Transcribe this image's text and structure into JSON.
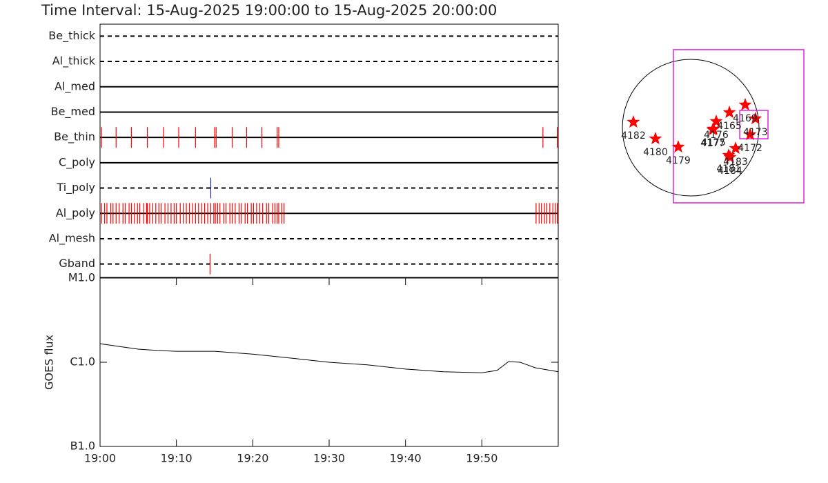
{
  "chart_data": [
    {
      "type": "timeline",
      "title": "Time Interval: 15-Aug-2025 19:00:00 to 15-Aug-2025 20:00:00",
      "xlim": [
        0,
        60
      ],
      "rows": [
        {
          "name": "Be_thick",
          "style": "dashed",
          "color": "#ff0000",
          "events": []
        },
        {
          "name": "Al_thick",
          "style": "dashed",
          "color": "#ff0000",
          "events": []
        },
        {
          "name": "Al_med",
          "style": "solid",
          "color": "#ff0000",
          "events": []
        },
        {
          "name": "Be_med",
          "style": "solid",
          "color": "#ff0000",
          "events": []
        },
        {
          "name": "Be_thin",
          "style": "solid",
          "color": "#ff0000",
          "events": [
            0.2,
            2.1,
            4.1,
            6.2,
            8.3,
            10.3,
            12.5,
            15.0,
            15.2,
            17.3,
            19.2,
            21.2,
            23.2,
            23.4,
            58.0,
            59.9
          ]
        },
        {
          "name": "C_poly",
          "style": "solid",
          "color": "#ff0000",
          "events": []
        },
        {
          "name": "Ti_poly",
          "style": "dashed",
          "color": "#2020a0",
          "events": [
            14.5
          ]
        },
        {
          "name": "Al_poly",
          "style": "solid",
          "color": "#ff0000",
          "events": [
            0.2,
            0.6,
            0.9,
            1.4,
            1.7,
            2.1,
            2.5,
            3.0,
            3.3,
            3.8,
            4.1,
            4.5,
            4.9,
            5.2,
            5.7,
            6.1,
            6.2,
            6.5,
            6.9,
            7.3,
            7.7,
            8.0,
            8.5,
            8.9,
            9.3,
            9.7,
            10.0,
            10.5,
            10.9,
            11.3,
            11.7,
            12.1,
            12.5,
            12.9,
            13.3,
            13.7,
            14.1,
            14.5,
            14.9,
            15.1,
            15.4,
            15.7,
            16.2,
            16.5,
            17.0,
            17.3,
            17.7,
            18.2,
            18.5,
            19.0,
            19.3,
            19.8,
            20.1,
            20.5,
            20.9,
            21.3,
            21.8,
            22.1,
            22.6,
            22.9,
            23.2,
            23.4,
            23.8,
            24.1,
            57.1,
            57.5,
            57.8,
            58.2,
            58.5,
            58.9,
            59.3,
            59.6,
            59.9
          ]
        },
        {
          "name": "Al_mesh",
          "style": "dashed",
          "color": "#ff0000",
          "events": []
        },
        {
          "name": "Gband",
          "style": "dashed",
          "color": "#ff0000",
          "events": [
            14.4
          ]
        }
      ]
    },
    {
      "type": "line",
      "ylabel": "GOES flux",
      "log": true,
      "color": "#000000",
      "x": [
        0,
        2.5,
        5,
        7.5,
        10,
        15,
        20,
        25,
        30,
        35,
        40,
        45,
        50,
        52,
        53.5,
        55,
        57,
        60
      ],
      "values": [
        1.66e-06,
        1.54e-06,
        1.43e-06,
        1.38e-06,
        1.35e-06,
        1.35e-06,
        1.25e-06,
        1.12e-06,
        1e-06,
        9.3e-07,
        8.3e-07,
        7.7e-07,
        7.5e-07,
        8e-07,
        1.02e-06,
        1e-06,
        8.6e-07,
        7.7e-07
      ],
      "xlim": [
        0,
        60
      ],
      "xticks": [
        {
          "value": 0,
          "label": "19:00"
        },
        {
          "value": 10,
          "label": "19:10"
        },
        {
          "value": 20,
          "label": "19:20"
        },
        {
          "value": 30,
          "label": "19:30"
        },
        {
          "value": 40,
          "label": "19:40"
        },
        {
          "value": 50,
          "label": "19:50"
        }
      ],
      "ylim": [
        1e-07,
        1e-05
      ],
      "yticks": [
        {
          "value": 1e-05,
          "label": "M1.0"
        },
        {
          "value": 1e-06,
          "label": "C1.0"
        },
        {
          "value": 1e-07,
          "label": "B1.0"
        }
      ]
    },
    {
      "type": "scatter",
      "solar_radius": 950,
      "color": "#ff0000",
      "labels": [
        "4182",
        "4180",
        "4179",
        "4176",
        "4175",
        "4177",
        "4165",
        "4169",
        "4172",
        "4173",
        "4183",
        "4181",
        "4184"
      ],
      "x": [
        -797,
        -490,
        -173,
        355,
        317,
        307,
        538,
        758,
        826,
        900,
        624,
        528,
        547
      ],
      "values": [
        77,
        -154,
        -269,
        86,
        -19,
        -29,
        211,
        317,
        -96,
        125,
        -288,
        -384,
        -413
      ],
      "boxes": [
        {
          "x": [
            -240,
            1574
          ],
          "y": [
            1085,
            -1046
          ],
          "color": "#e020e0"
        },
        {
          "x": [
            682,
            1075
          ],
          "y": [
            240,
            -154
          ],
          "color": "#e020e0"
        }
      ]
    }
  ]
}
